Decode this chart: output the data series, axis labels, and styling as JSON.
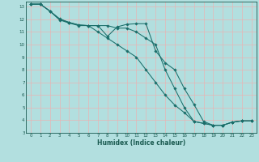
{
  "xlabel": "Humidex (Indice chaleur)",
  "bg_color": "#b2dfdf",
  "grid_color": "#ffffff",
  "line_color": "#1a6e6a",
  "marker_color": "#1a6e6a",
  "xlim": [
    -0.5,
    23.5
  ],
  "ylim": [
    3,
    13.4
  ],
  "xticks": [
    0,
    1,
    2,
    3,
    4,
    5,
    6,
    7,
    8,
    9,
    10,
    11,
    12,
    13,
    14,
    15,
    16,
    17,
    18,
    19,
    20,
    21,
    22,
    23
  ],
  "yticks": [
    3,
    4,
    5,
    6,
    7,
    8,
    9,
    10,
    11,
    12,
    13
  ],
  "line1_x": [
    0,
    1,
    2,
    3,
    4,
    5,
    6,
    7,
    8,
    9,
    10,
    11,
    12,
    13,
    14,
    15,
    16,
    17,
    18,
    19,
    20,
    21,
    22,
    23
  ],
  "line1_y": [
    13.2,
    13.2,
    12.65,
    12.05,
    11.75,
    11.55,
    11.5,
    11.5,
    10.65,
    11.4,
    11.6,
    11.65,
    11.65,
    9.5,
    8.55,
    8.0,
    6.5,
    5.25,
    3.9,
    3.6,
    3.6,
    3.85,
    3.95,
    3.95
  ],
  "line2_x": [
    0,
    1,
    2,
    3,
    4,
    5,
    6,
    7,
    8,
    9,
    10,
    11,
    12,
    13,
    14,
    15,
    16,
    17,
    18,
    19,
    20,
    21,
    22,
    23
  ],
  "line2_y": [
    13.2,
    13.2,
    12.65,
    12.0,
    11.75,
    11.55,
    11.5,
    11.0,
    10.5,
    10.0,
    9.5,
    9.0,
    8.0,
    7.0,
    6.0,
    5.2,
    4.6,
    3.9,
    3.75,
    3.6,
    3.6,
    3.85,
    3.95,
    3.95
  ],
  "line3_x": [
    0,
    1,
    2,
    3,
    4,
    5,
    6,
    7,
    8,
    9,
    10,
    11,
    12,
    13,
    14,
    15,
    16,
    17,
    18,
    19,
    20,
    21,
    22,
    23
  ],
  "line3_y": [
    13.2,
    13.2,
    12.65,
    11.95,
    11.7,
    11.5,
    11.5,
    11.5,
    11.5,
    11.3,
    11.3,
    11.0,
    10.5,
    10.0,
    8.0,
    6.5,
    5.0,
    3.9,
    3.75,
    3.6,
    3.6,
    3.85,
    3.95,
    3.95
  ]
}
